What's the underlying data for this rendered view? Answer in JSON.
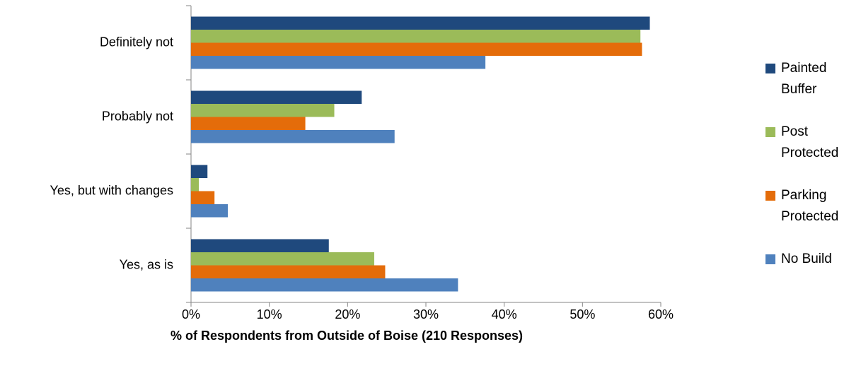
{
  "chart_data": {
    "type": "barh",
    "xlabel": "% of Respondents from Outside of Boise (210 Responses)",
    "categories": [
      "Definitely not",
      "Probably not",
      "Yes, but with changes",
      "Yes, as is"
    ],
    "series": [
      {
        "name": "Painted Buffer",
        "color": "#1f497d",
        "values": [
          58.6,
          21.8,
          2.1,
          17.6
        ]
      },
      {
        "name": "Post Protected",
        "color": "#9bbb59",
        "values": [
          57.4,
          18.3,
          1.0,
          23.4
        ]
      },
      {
        "name": "Parking Protected",
        "color": "#e46c0a",
        "values": [
          57.6,
          14.6,
          3.0,
          24.8
        ]
      },
      {
        "name": "No Build",
        "color": "#4f81bd",
        "values": [
          37.6,
          26.0,
          4.7,
          34.1
        ]
      }
    ],
    "xlim": [
      0,
      60
    ],
    "xticks": [
      {
        "value": 0,
        "label": "0%"
      },
      {
        "value": 10,
        "label": "10%"
      },
      {
        "value": 20,
        "label": "20%"
      },
      {
        "value": 30,
        "label": "30%"
      },
      {
        "value": 40,
        "label": "40%"
      },
      {
        "value": 50,
        "label": "50%"
      },
      {
        "value": 60,
        "label": "60%"
      }
    ],
    "grid": false,
    "legend": "right"
  }
}
